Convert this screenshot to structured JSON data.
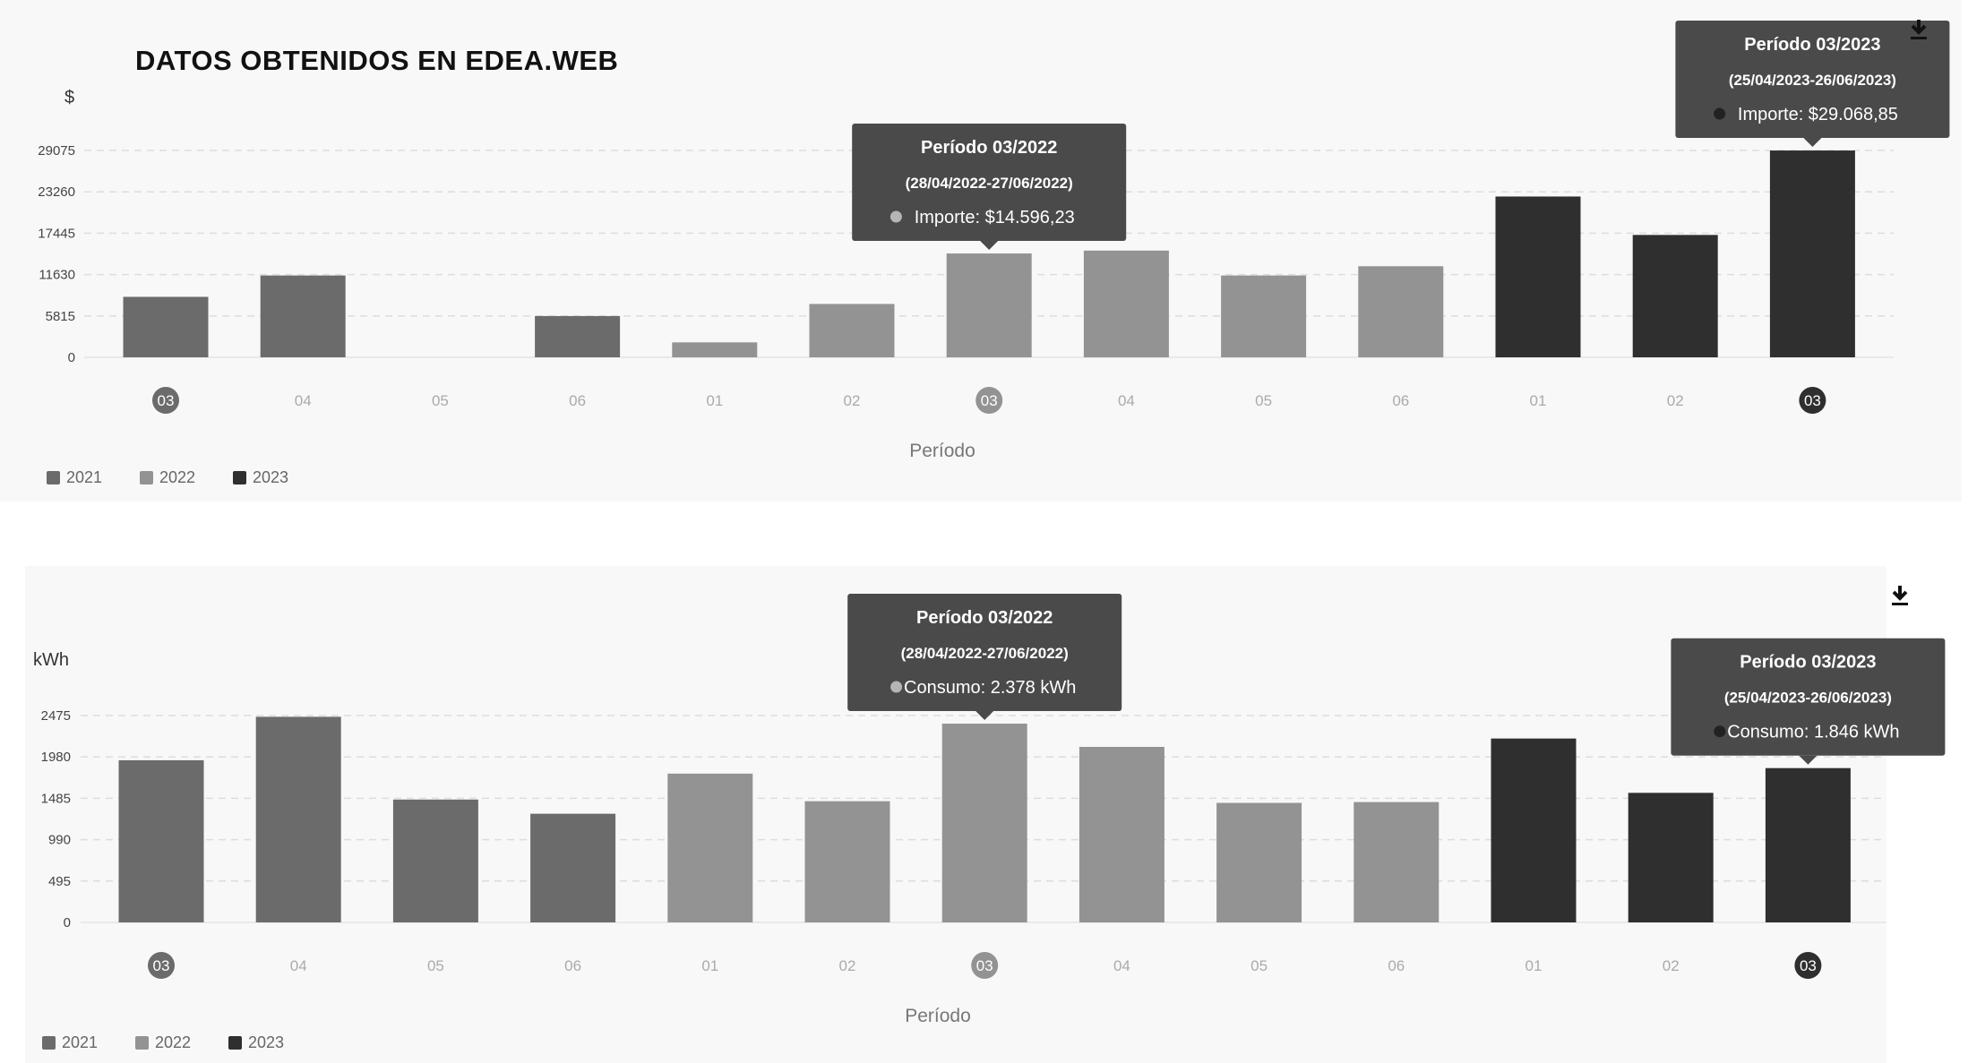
{
  "heading": "DATOS OBTENIDOS EN EDEA.WEB",
  "chart_data": [
    {
      "type": "bar",
      "ylabel": "$",
      "xlabel": "Período",
      "yticks": [
        0,
        5815,
        11630,
        17445,
        23260,
        29075
      ],
      "ylim": [
        0,
        29075
      ],
      "grid": true,
      "legend_position": "bottom-left",
      "legend": [
        {
          "name": "2021",
          "color": "#6b6b6b"
        },
        {
          "name": "2022",
          "color": "#939393"
        },
        {
          "name": "2023",
          "color": "#2f2f2f"
        }
      ],
      "categories": [
        "03",
        "04",
        "05",
        "06",
        "01",
        "02",
        "03",
        "04",
        "05",
        "06",
        "01",
        "02",
        "03"
      ],
      "years": [
        "2021",
        "2021",
        "2021",
        "2021",
        "2022",
        "2022",
        "2022",
        "2022",
        "2022",
        "2022",
        "2023",
        "2023",
        "2023"
      ],
      "values": [
        8500,
        11500,
        0,
        5800,
        2100,
        7500,
        14596.23,
        15000,
        11500,
        12800,
        22600,
        17200,
        29068.85
      ],
      "highlighted_indices": [
        0,
        6,
        12
      ],
      "tooltips": [
        {
          "index": 6,
          "title": "Período 03/2022",
          "range": "(28/04/2022-27/06/2022)",
          "label": "Importe: $14.596,23",
          "dot_color": "#b5b5b5"
        },
        {
          "index": 12,
          "title": "Período 03/2023",
          "range": "(25/04/2023-26/06/2023)",
          "label": "Importe: $29.068,85",
          "dot_color": "#222222"
        }
      ]
    },
    {
      "type": "bar",
      "ylabel": "kWh",
      "xlabel": "Período",
      "yticks": [
        0,
        495,
        990,
        1485,
        1980,
        2475
      ],
      "ylim": [
        0,
        2475
      ],
      "grid": true,
      "legend_position": "bottom-left",
      "legend": [
        {
          "name": "2021",
          "color": "#6b6b6b"
        },
        {
          "name": "2022",
          "color": "#939393"
        },
        {
          "name": "2023",
          "color": "#2f2f2f"
        }
      ],
      "categories": [
        "03",
        "04",
        "05",
        "06",
        "01",
        "02",
        "03",
        "04",
        "05",
        "06",
        "01",
        "02",
        "03"
      ],
      "years": [
        "2021",
        "2021",
        "2021",
        "2021",
        "2022",
        "2022",
        "2022",
        "2022",
        "2022",
        "2022",
        "2023",
        "2023",
        "2023"
      ],
      "values": [
        1940,
        2460,
        1470,
        1300,
        1780,
        1450,
        2378,
        2100,
        1430,
        1440,
        2200,
        1550,
        1846
      ],
      "highlighted_indices": [
        0,
        6,
        12
      ],
      "tooltips": [
        {
          "index": 6,
          "title": "Período 03/2022",
          "range": "(28/04/2022-27/06/2022)",
          "label": "Consumo: 2.378 kWh",
          "dot_color": "#b5b5b5"
        },
        {
          "index": 12,
          "title": "Período 03/2023",
          "range": "(25/04/2023-26/06/2023)",
          "label": "Consumo: 1.846 kWh",
          "dot_color": "#222222"
        }
      ]
    }
  ]
}
